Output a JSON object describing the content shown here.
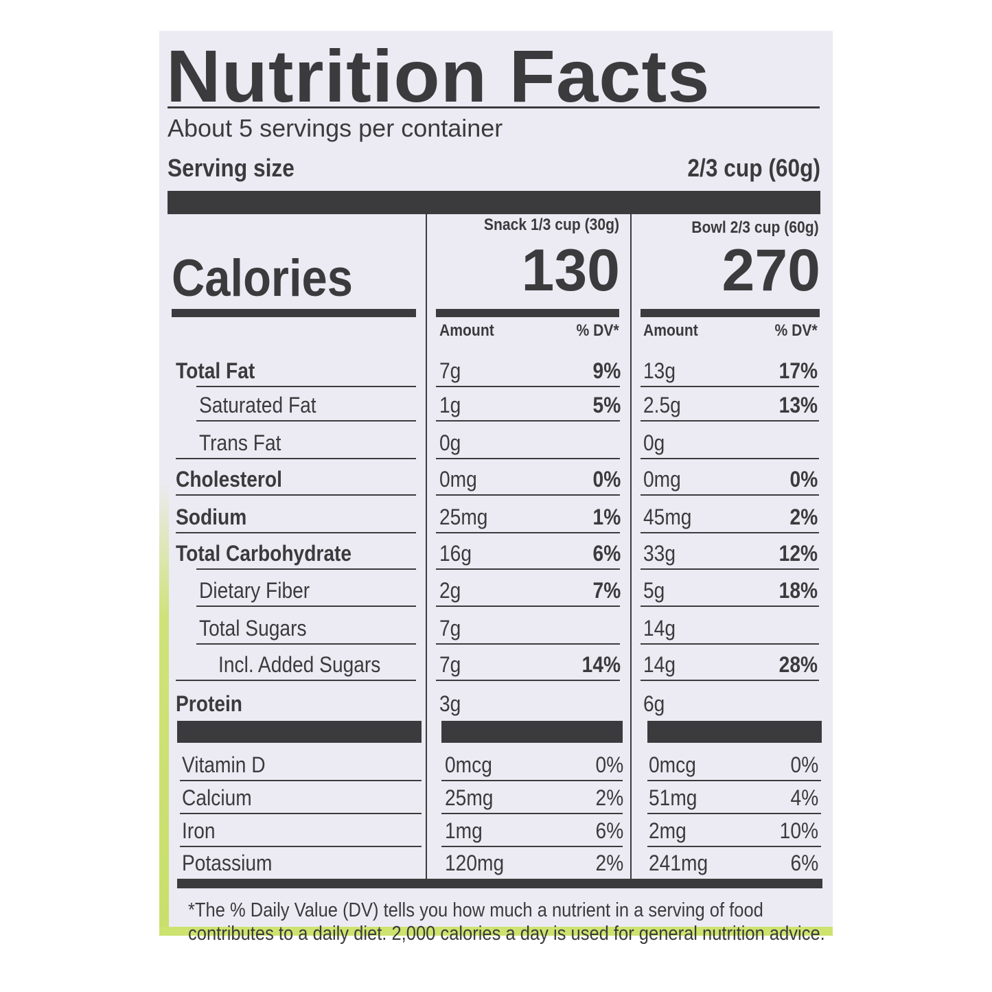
{
  "title": "Nutrition Facts",
  "servings_per_container": "About 5 servings per container",
  "serving_size": {
    "label": "Serving size",
    "value": "2/3 cup (60g)"
  },
  "calories_label": "Calories",
  "columns": [
    {
      "header": "Snack 1/3 cup (30g)",
      "calories": "130",
      "amount_label": "Amount",
      "dv_label": "% DV*"
    },
    {
      "header": "Bowl 2/3 cup (60g)",
      "calories": "270",
      "amount_label": "Amount",
      "dv_label": "% DV*"
    }
  ],
  "nutrients": [
    {
      "name": "Total Fat",
      "bold": true,
      "indent": 0,
      "snack": [
        "7g",
        "9%"
      ],
      "bowl": [
        "13g",
        "17%"
      ]
    },
    {
      "name": "Saturated Fat",
      "bold": false,
      "indent": 1,
      "snack": [
        "1g",
        "5%"
      ],
      "bowl": [
        "2.5g",
        "13%"
      ]
    },
    {
      "name": "Trans Fat",
      "bold": false,
      "indent": 1,
      "snack": [
        "0g",
        ""
      ],
      "bowl": [
        "0g",
        ""
      ]
    },
    {
      "name": "Cholesterol",
      "bold": true,
      "indent": 0,
      "snack": [
        "0mg",
        "0%"
      ],
      "bowl": [
        "0mg",
        "0%"
      ]
    },
    {
      "name": "Sodium",
      "bold": true,
      "indent": 0,
      "snack": [
        "25mg",
        "1%"
      ],
      "bowl": [
        "45mg",
        "2%"
      ]
    },
    {
      "name": "Total Carbohydrate",
      "bold": true,
      "indent": 0,
      "snack": [
        "16g",
        "6%"
      ],
      "bowl": [
        "33g",
        "12%"
      ]
    },
    {
      "name": "Dietary Fiber",
      "bold": false,
      "indent": 1,
      "snack": [
        "2g",
        "7%"
      ],
      "bowl": [
        "5g",
        "18%"
      ]
    },
    {
      "name": "Total Sugars",
      "bold": false,
      "indent": 1,
      "snack": [
        "7g",
        ""
      ],
      "bowl": [
        "14g",
        ""
      ]
    },
    {
      "name": "Incl. Added Sugars",
      "bold": false,
      "indent": 2,
      "snack": [
        "7g",
        "14%"
      ],
      "bowl": [
        "14g",
        "28%"
      ]
    },
    {
      "name": "Protein",
      "bold": true,
      "indent": 0,
      "snack": [
        "3g",
        ""
      ],
      "bowl": [
        "6g",
        ""
      ]
    }
  ],
  "vitamins": [
    {
      "name": "Vitamin D",
      "snack": [
        "0mcg",
        "0%"
      ],
      "bowl": [
        "0mcg",
        "0%"
      ]
    },
    {
      "name": "Calcium",
      "snack": [
        "25mg",
        "2%"
      ],
      "bowl": [
        "51mg",
        "4%"
      ]
    },
    {
      "name": "Iron",
      "snack": [
        "1mg",
        "6%"
      ],
      "bowl": [
        "2mg",
        "10%"
      ]
    },
    {
      "name": "Potassium",
      "snack": [
        "120mg",
        "2%"
      ],
      "bowl": [
        "241mg",
        "6%"
      ]
    }
  ],
  "footnote": [
    "*The % Daily Value (DV) tells you how much a nutrient in a serving of food",
    "contributes to a daily diet. 2,000 calories a day is used for general nutrition advice."
  ],
  "colors": {
    "background": "#ecebf3",
    "ink": "#3b3b3d",
    "package_green": "#cde36f"
  }
}
